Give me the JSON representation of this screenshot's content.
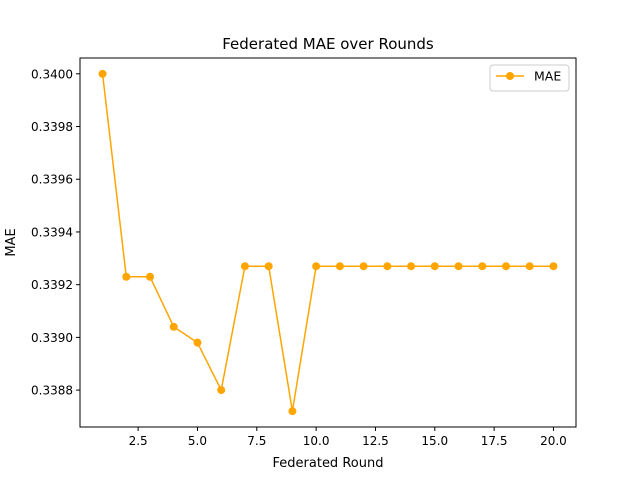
{
  "chart_data": {
    "type": "line",
    "title": "Federated MAE over Rounds",
    "xlabel": "Federated Round",
    "ylabel": "MAE",
    "xlim": [
      0.05,
      20.95
    ],
    "ylim": [
      0.33866,
      0.34006
    ],
    "xticks": [
      2.5,
      5.0,
      7.5,
      10.0,
      12.5,
      15.0,
      17.5,
      20.0
    ],
    "xtick_labels": [
      "2.5",
      "5.0",
      "7.5",
      "10.0",
      "12.5",
      "15.0",
      "17.5",
      "20.0"
    ],
    "yticks": [
      0.3388,
      0.339,
      0.3392,
      0.3394,
      0.3396,
      0.3398,
      0.34
    ],
    "ytick_labels": [
      "0.3388",
      "0.3390",
      "0.3392",
      "0.3394",
      "0.3396",
      "0.3398",
      "0.3400"
    ],
    "grid": false,
    "legend_position": "top-right",
    "series": [
      {
        "name": "MAE",
        "color": "#ffa500",
        "marker": "circle",
        "x": [
          1,
          2,
          3,
          4,
          5,
          6,
          7,
          8,
          9,
          10,
          11,
          12,
          13,
          14,
          15,
          16,
          17,
          18,
          19,
          20
        ],
        "y": [
          0.34,
          0.33923,
          0.33923,
          0.33904,
          0.33898,
          0.3388,
          0.33927,
          0.33927,
          0.33872,
          0.33927,
          0.33927,
          0.33927,
          0.33927,
          0.33927,
          0.33927,
          0.33927,
          0.33927,
          0.33927,
          0.33927,
          0.33927
        ]
      }
    ]
  }
}
